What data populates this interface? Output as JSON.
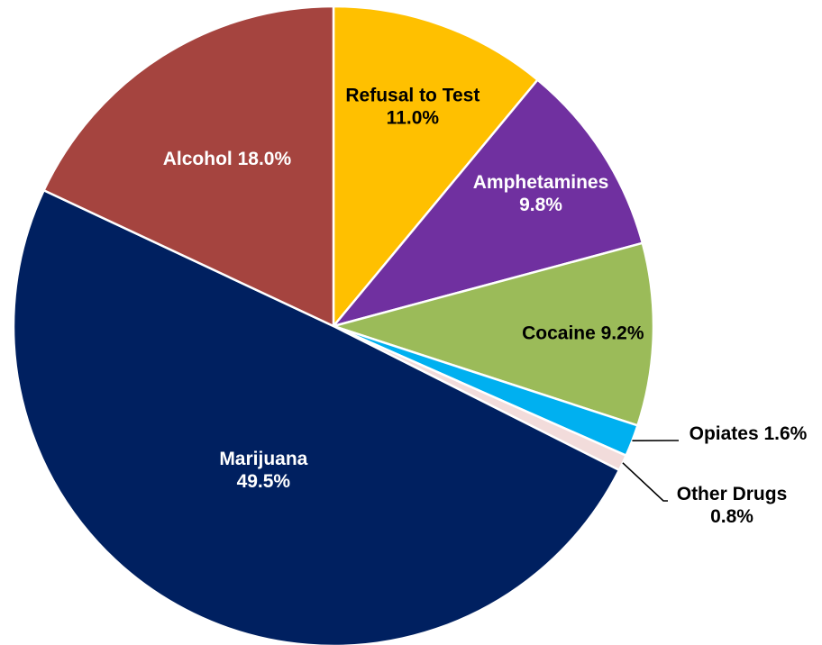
{
  "chart_data": {
    "type": "pie",
    "title": "",
    "start_angle_deg": 0,
    "direction": "clockwise",
    "slices": [
      {
        "name": "Refusal to Test",
        "value": 11.0,
        "value_label": "11.0%",
        "label_lines": [
          "Refusal to Test",
          "11.0%"
        ],
        "color": "#FFC000",
        "label_color": "#000000",
        "label_inside": true
      },
      {
        "name": "Amphetamines",
        "value": 9.8,
        "value_label": "9.8%",
        "label_lines": [
          "Amphetamines",
          "9.8%"
        ],
        "color": "#7030A0",
        "label_color": "#FFFFFF",
        "label_inside": true
      },
      {
        "name": "Cocaine",
        "value": 9.2,
        "value_label": "9.2%",
        "label_lines": [
          "Cocaine 9.2%"
        ],
        "color": "#9BBB59",
        "label_color": "#000000",
        "label_inside": true
      },
      {
        "name": "Opiates",
        "value": 1.6,
        "value_label": "1.6%",
        "label_lines": [
          "Opiates 1.6%"
        ],
        "color": "#00B0F0",
        "label_color": "#000000",
        "label_inside": false
      },
      {
        "name": "Other Drugs",
        "value": 0.8,
        "value_label": "0.8%",
        "label_lines": [
          "Other Drugs",
          "0.8%"
        ],
        "color": "#F2DCDB",
        "label_color": "#000000",
        "label_inside": false
      },
      {
        "name": "Marijuana",
        "value": 49.5,
        "value_label": "49.5%",
        "label_lines": [
          "Marijuana",
          "49.5%"
        ],
        "color": "#002060",
        "label_color": "#FFFFFF",
        "label_inside": true
      },
      {
        "name": "Alcohol",
        "value": 18.0,
        "value_label": "18.0%",
        "label_lines": [
          "Alcohol 18.0%"
        ],
        "color": "#A5443F",
        "label_color": "#FFFFFF",
        "label_inside": true
      }
    ],
    "legend": "none"
  }
}
